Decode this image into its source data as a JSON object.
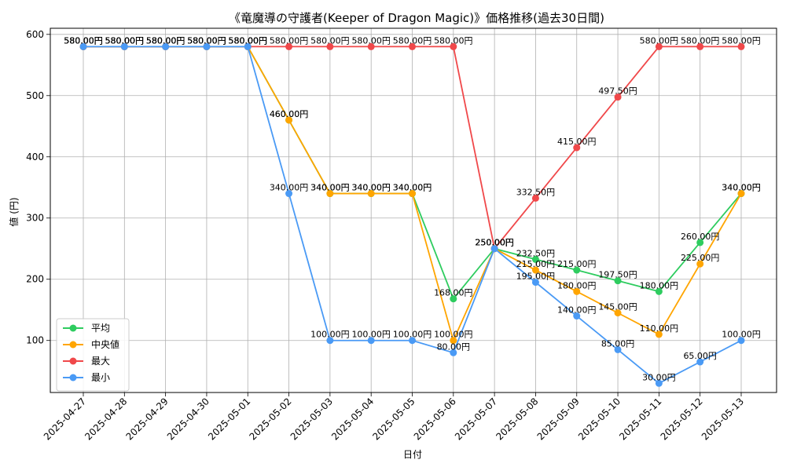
{
  "chart_data": {
    "type": "line",
    "title": "《竜魔導の守護者(Keeper of Dragon Magic)》価格推移(過去30日間)",
    "xlabel": "日付",
    "ylabel": "値 (円)",
    "unit_suffix": "円",
    "categories": [
      "2025-04-27",
      "2025-04-28",
      "2025-04-29",
      "2025-04-30",
      "2025-05-01",
      "2025-05-02",
      "2025-05-03",
      "2025-05-04",
      "2025-05-05",
      "2025-05-06",
      "2025-05-07",
      "2025-05-08",
      "2025-05-09",
      "2025-05-10",
      "2025-05-11",
      "2025-05-12",
      "2025-05-13"
    ],
    "ylim": [
      15,
      610
    ],
    "yticks": [
      100,
      200,
      300,
      400,
      500,
      600
    ],
    "grid": true,
    "legend_position": "lower-left",
    "series": [
      {
        "name": "平均",
        "color": "#2ecc5f",
        "values": [
          580,
          580,
          580,
          580,
          580,
          460,
          340,
          340,
          340,
          168,
          250,
          232.5,
          215,
          197.5,
          180,
          260,
          340
        ]
      },
      {
        "name": "中央値",
        "color": "#ffa500",
        "values": [
          580,
          580,
          580,
          580,
          580,
          460,
          340,
          340,
          340,
          100,
          250,
          215,
          180,
          145,
          110,
          225,
          340
        ]
      },
      {
        "name": "最大",
        "color": "#f0484a",
        "values": [
          580,
          580,
          580,
          580,
          580,
          580,
          580,
          580,
          580,
          580,
          250,
          332.5,
          415,
          497.5,
          580,
          580,
          580
        ]
      },
      {
        "name": "最小",
        "color": "#4a9af5",
        "values": [
          580,
          580,
          580,
          580,
          580,
          340,
          100,
          100,
          100,
          80,
          250,
          195,
          140,
          85,
          30,
          65,
          100
        ]
      }
    ]
  }
}
